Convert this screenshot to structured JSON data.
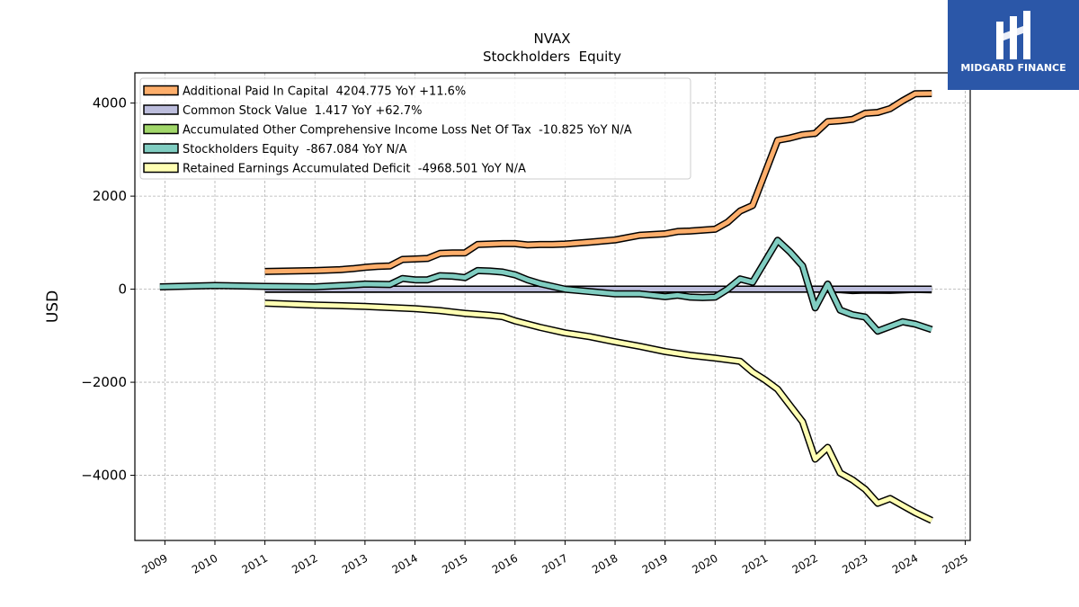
{
  "brand": {
    "name": "MIDGARD FINANCE"
  },
  "chart_data": {
    "type": "line",
    "title": "NVAX",
    "subtitle": "Stockholders  Equity",
    "ylabel": "USD",
    "xlabel": "",
    "xlim": [
      2008.4,
      2025.1
    ],
    "ylim": [
      -5400,
      4650
    ],
    "grid": true,
    "legend_position": "top-left",
    "x_ticks": [
      2009,
      2010,
      2011,
      2012,
      2013,
      2014,
      2015,
      2016,
      2017,
      2018,
      2019,
      2020,
      2021,
      2022,
      2023,
      2024,
      2025
    ],
    "x_tick_labels": [
      "2009",
      "2010",
      "2011",
      "2012",
      "2013",
      "2014",
      "2015",
      "2016",
      "2017",
      "2018",
      "2019",
      "2020",
      "2021",
      "2022",
      "2023",
      "2024",
      "2025"
    ],
    "y_ticks": [
      -4000,
      -2000,
      0,
      2000,
      4000
    ],
    "y_tick_labels": [
      "−4000",
      "−2000",
      "0",
      "2000",
      "4000"
    ],
    "series": [
      {
        "name": "Additional Paid In Capital",
        "legend_label": "Additional Paid In Capital  4204.775 YoY +11.6%",
        "color": "#fdae6b",
        "x": [
          2011,
          2011.5,
          2012,
          2012.5,
          2012.75,
          2013,
          2013.25,
          2013.5,
          2013.75,
          2014,
          2014.25,
          2014.5,
          2014.75,
          2015,
          2015.25,
          2015.5,
          2015.75,
          2016,
          2016.25,
          2016.5,
          2016.75,
          2017,
          2017.5,
          2018,
          2018.25,
          2018.5,
          2019,
          2019.25,
          2019.5,
          2019.75,
          2020,
          2020.25,
          2020.5,
          2020.75,
          2021,
          2021.25,
          2021.5,
          2021.75,
          2022,
          2022.25,
          2022.5,
          2022.75,
          2023,
          2023.25,
          2023.5,
          2023.75,
          2024,
          2024.33
        ],
        "y": [
          380,
          390,
          400,
          420,
          440,
          470,
          490,
          500,
          640,
          650,
          660,
          770,
          780,
          780,
          960,
          970,
          980,
          980,
          950,
          960,
          960,
          970,
          1010,
          1060,
          1110,
          1160,
          1190,
          1240,
          1250,
          1270,
          1290,
          1440,
          1680,
          1800,
          2500,
          3200,
          3250,
          3320,
          3350,
          3600,
          3620,
          3650,
          3780,
          3800,
          3880,
          4050,
          4200,
          4205
        ]
      },
      {
        "name": "Common Stock Value",
        "legend_label": "Common Stock Value  1.417 YoY +62.7%",
        "color": "#bcbddc",
        "x": [
          2011,
          2014,
          2017,
          2020,
          2022,
          2024.33
        ],
        "y": [
          1,
          1,
          1,
          1,
          1,
          1.417
        ]
      },
      {
        "name": "Accumulated Other Comprehensive Income Loss Net Of Tax",
        "legend_label": "Accumulated Other Comprehensive Income Loss Net Of Tax  -10.825 YoY N/A",
        "color": "#a1d76a",
        "x": [
          2011,
          2013,
          2015,
          2017,
          2019,
          2020,
          2021,
          2022,
          2022.5,
          2022.75,
          2023,
          2023.5,
          2024,
          2024.33
        ],
        "y": [
          -2,
          -2,
          0,
          0,
          0,
          0,
          0,
          0,
          -10,
          -30,
          -20,
          -25,
          -5,
          -10.825
        ]
      },
      {
        "name": "Stockholders Equity",
        "legend_label": "Stockholders Equity  -867.084 YoY N/A",
        "color": "#80cdc1",
        "x": [
          2008.9,
          2010,
          2011,
          2012,
          2012.75,
          2013,
          2013.5,
          2013.75,
          2014,
          2014.25,
          2014.5,
          2014.75,
          2015,
          2015.25,
          2015.5,
          2015.75,
          2016,
          2016.25,
          2016.5,
          2016.75,
          2017,
          2017.5,
          2018,
          2018.5,
          2019,
          2019.25,
          2019.5,
          2019.75,
          2020,
          2020.25,
          2020.5,
          2020.75,
          2021,
          2021.25,
          2021.5,
          2021.75,
          2022,
          2022.25,
          2022.5,
          2022.75,
          2023,
          2023.25,
          2023.5,
          2023.75,
          2024,
          2024.33
        ],
        "y": [
          50,
          80,
          60,
          50,
          90,
          110,
          100,
          230,
          200,
          200,
          290,
          280,
          250,
          400,
          390,
          370,
          310,
          200,
          120,
          60,
          0,
          -50,
          -100,
          -100,
          -160,
          -130,
          -170,
          -180,
          -170,
          0,
          220,
          150,
          600,
          1050,
          800,
          500,
          -400,
          110,
          -450,
          -550,
          -600,
          -900,
          -800,
          -700,
          -750,
          -867
        ]
      },
      {
        "name": "Retained Earnings Accumulated Deficit",
        "legend_label": "Retained Earnings Accumulated Deficit  -4968.501 YoY N/A",
        "color": "#ffffb3",
        "x": [
          2011,
          2012,
          2013,
          2014,
          2014.5,
          2015,
          2015.5,
          2015.75,
          2016,
          2016.5,
          2017,
          2017.5,
          2018,
          2018.5,
          2019,
          2019.5,
          2020,
          2020.5,
          2020.75,
          2021,
          2021.25,
          2021.5,
          2021.75,
          2022,
          2022.25,
          2022.5,
          2022.75,
          2023,
          2023.25,
          2023.5,
          2023.75,
          2024,
          2024.33
        ],
        "y": [
          -300,
          -340,
          -370,
          -420,
          -460,
          -520,
          -560,
          -590,
          -680,
          -820,
          -940,
          -1020,
          -1130,
          -1230,
          -1340,
          -1420,
          -1480,
          -1550,
          -1780,
          -1950,
          -2150,
          -2500,
          -2850,
          -3650,
          -3400,
          -3950,
          -4100,
          -4300,
          -4600,
          -4500,
          -4650,
          -4800,
          -4969
        ]
      }
    ]
  }
}
